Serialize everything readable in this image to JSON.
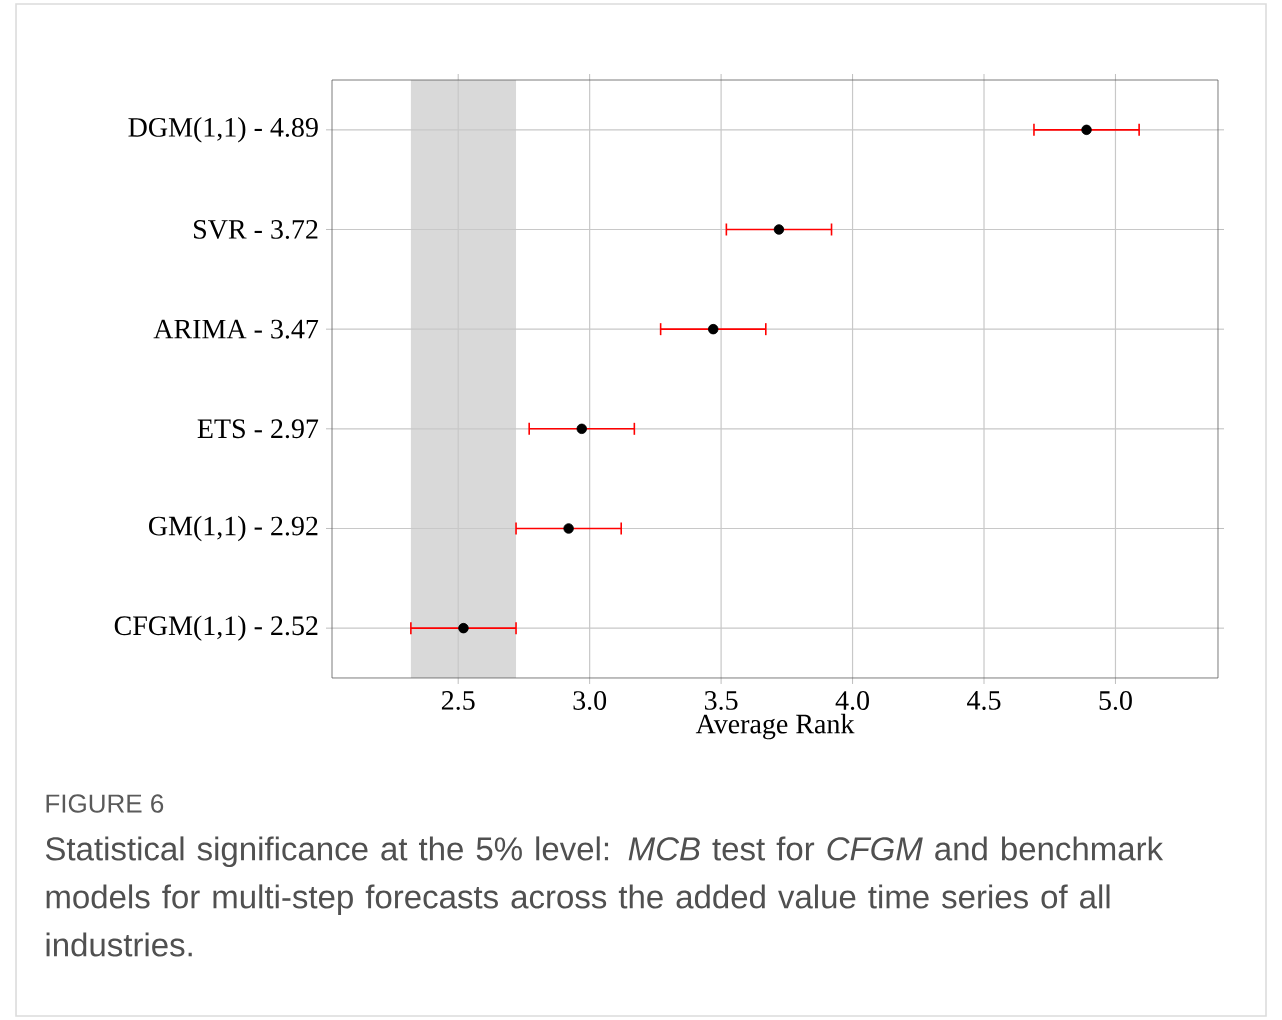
{
  "chart_data": {
    "type": "scatter",
    "orientation": "horizontal",
    "categories": [
      "DGM(1,1) - 4.89",
      "SVR - 3.72",
      "ARIMA - 3.47",
      "ETS - 2.97",
      "GM(1,1) - 2.92",
      "CFGM(1,1) - 2.52"
    ],
    "series": [
      {
        "color": "#000000",
        "values": [
          4.89,
          3.72,
          3.47,
          2.97,
          2.92,
          2.52
        ],
        "errors": [
          0.2,
          0.2,
          0.2,
          0.2,
          0.2,
          0.2
        ]
      }
    ],
    "marker": "circle",
    "xlabel": "Average Rank",
    "xlim": [
      2.02,
      5.39
    ],
    "xticks": [
      2.5,
      {
        "value": 3,
        "label": "3.0"
      },
      3.5,
      {
        "value": 4,
        "label": "4.0"
      },
      4.5,
      {
        "value": 5,
        "label": "5.0"
      }
    ],
    "grid": true,
    "bands": [
      {
        "axis": "x",
        "from": 2.32,
        "to": 2.72,
        "color": "#d9d9d9"
      }
    ],
    "annotations": [
      "FIGURE 6",
      "Statistical significance at the 5% level: *MCB* test for *CFGM* and benchmark models for multi-step forecasts across the added value time series of all industries."
    ]
  }
}
